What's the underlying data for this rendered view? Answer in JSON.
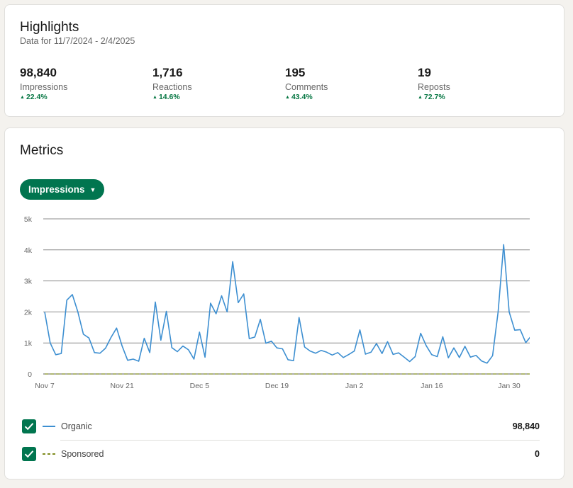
{
  "highlights": {
    "title": "Highlights",
    "subtitle": "Data for 11/7/2024 - 2/4/2025",
    "stats": [
      {
        "value": "98,840",
        "label": "Impressions",
        "change": "22.4%"
      },
      {
        "value": "1,716",
        "label": "Reactions",
        "change": "14.6%"
      },
      {
        "value": "195",
        "label": "Comments",
        "change": "43.4%"
      },
      {
        "value": "19",
        "label": "Reposts",
        "change": "72.7%"
      }
    ]
  },
  "metrics": {
    "title": "Metrics",
    "dropdown_label": "Impressions",
    "legend": [
      {
        "name": "Organic",
        "total": "98,840",
        "checked": true
      },
      {
        "name": "Sponsored",
        "total": "0",
        "checked": true
      }
    ]
  },
  "colors": {
    "accent": "#01754f",
    "positive": "#057642",
    "organic_line": "#3d8fd1",
    "sponsored_line": "#7f8c1f"
  },
  "icons": {
    "increase": "triangle-up-icon",
    "dropdown": "caret-down-icon",
    "checkbox": "checkmark-icon"
  },
  "chart_data": {
    "type": "line",
    "x_tick_labels": [
      "Nov 7",
      "Nov 21",
      "Dec 5",
      "Dec 19",
      "Jan 2",
      "Jan 16",
      "Jan 30"
    ],
    "y_tick_labels": [
      "0",
      "1k",
      "2k",
      "3k",
      "4k",
      "5k"
    ],
    "ylim": [
      0,
      5000
    ],
    "grid": true,
    "series": [
      {
        "name": "Organic",
        "style": "solid",
        "values": [
          2000,
          1000,
          620,
          660,
          2380,
          2560,
          2000,
          1280,
          1160,
          690,
          670,
          830,
          1180,
          1480,
          900,
          440,
          480,
          410,
          1150,
          690,
          2320,
          1090,
          2020,
          850,
          720,
          900,
          780,
          480,
          1350,
          540,
          2280,
          1940,
          2520,
          2000,
          3620,
          2300,
          2580,
          1140,
          1190,
          1760,
          990,
          1060,
          840,
          810,
          460,
          430,
          1820,
          870,
          740,
          670,
          760,
          700,
          610,
          690,
          530,
          630,
          740,
          1420,
          640,
          700,
          980,
          660,
          1040,
          630,
          680,
          540,
          400,
          560,
          1310,
          910,
          620,
          560,
          1200,
          520,
          840,
          530,
          890,
          540,
          600,
          420,
          350,
          590,
          2000,
          4170,
          2000,
          1410,
          1430,
          1010,
          1230,
          870
        ],
        "x_start": "Nov 7",
        "x_step_days": 1
      },
      {
        "name": "Sponsored",
        "style": "dashed",
        "values": [
          0,
          0,
          0,
          0,
          0,
          0,
          0,
          0,
          0,
          0,
          0,
          0,
          0,
          0,
          0,
          0,
          0,
          0,
          0,
          0,
          0,
          0,
          0,
          0,
          0,
          0,
          0,
          0,
          0,
          0,
          0,
          0,
          0,
          0,
          0,
          0,
          0,
          0,
          0,
          0,
          0,
          0,
          0,
          0,
          0,
          0,
          0,
          0,
          0,
          0,
          0,
          0,
          0,
          0,
          0,
          0,
          0,
          0,
          0,
          0,
          0,
          0,
          0,
          0,
          0,
          0,
          0,
          0,
          0,
          0,
          0,
          0,
          0,
          0,
          0,
          0,
          0,
          0,
          0,
          0,
          0,
          0,
          0,
          0,
          0,
          0,
          0,
          0,
          0,
          0
        ],
        "x_start": "Nov 7",
        "x_step_days": 1
      }
    ]
  }
}
